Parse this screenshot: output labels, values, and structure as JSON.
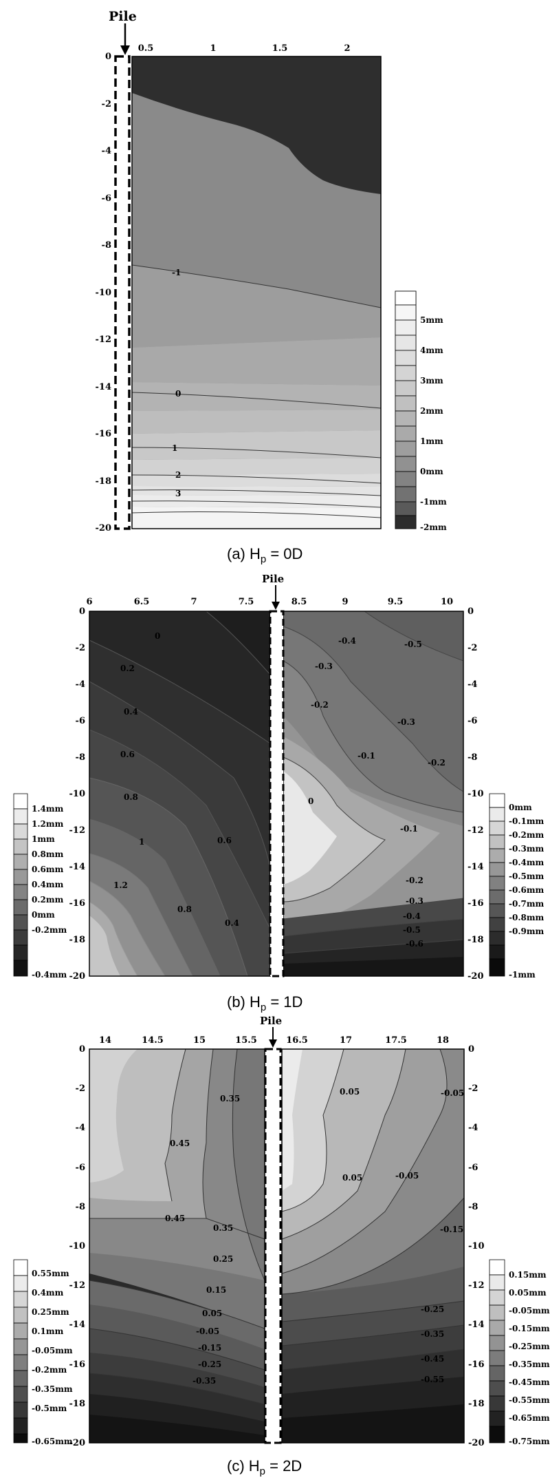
{
  "chart_data": [
    {
      "type": "heatmap",
      "caption": {
        "prefix": "(a)  H",
        "sub": "p",
        "suffix": " = 0D"
      },
      "pile_label": "Pile",
      "x_ticks": [
        "0.5",
        "1",
        "1.5",
        "2"
      ],
      "y_ticks": [
        "0",
        "-2",
        "-4",
        "-6",
        "-8",
        "-10",
        "-12",
        "-14",
        "-16",
        "-18",
        "-20"
      ],
      "contour_labels": [
        "-1",
        "0",
        "1",
        "2",
        "3"
      ],
      "legend": [
        "5mm",
        "4mm",
        "3mm",
        "2mm",
        "1mm",
        "0mm",
        "-1mm",
        "-2mm"
      ]
    },
    {
      "type": "heatmap",
      "caption": {
        "prefix": "(b)  H",
        "sub": "p",
        "suffix": " = 1D"
      },
      "pile_label": "Pile",
      "x_ticks_left": [
        "6",
        "6.5",
        "7",
        "7.5"
      ],
      "x_ticks_right": [
        "8.5",
        "9",
        "9.5",
        "10"
      ],
      "y_ticks": [
        "0",
        "-2",
        "-4",
        "-6",
        "-8",
        "-10",
        "-12",
        "-14",
        "-16",
        "-18",
        "-20"
      ],
      "contour_labels_left": [
        "0",
        "0.2",
        "0.4",
        "0.6",
        "0.8",
        "1",
        "1.2",
        "0.8",
        "0.6",
        "0.4"
      ],
      "contour_labels_right": [
        "-0.4",
        "-0.5",
        "-0.3",
        "-0.2",
        "-0.3",
        "-0.1",
        "-0.2",
        "0",
        "-0.1",
        "-0.2",
        "-0.3",
        "-0.4",
        "-0.5",
        "-0.6"
      ],
      "legend_left": [
        "1.4mm",
        "1.2mm",
        "1mm",
        "0.8mm",
        "0.6mm",
        "0.4mm",
        "0.2mm",
        "0mm",
        "-0.2mm",
        "-0.4mm"
      ],
      "legend_right": [
        "0mm",
        "-0.1mm",
        "-0.2mm",
        "-0.3mm",
        "-0.4mm",
        "-0.5mm",
        "-0.6mm",
        "-0.7mm",
        "-0.8mm",
        "-0.9mm",
        "-1mm"
      ]
    },
    {
      "type": "heatmap",
      "caption": {
        "prefix": "(c)  H",
        "sub": "p",
        "suffix": " = 2D"
      },
      "pile_label": "Pile",
      "x_ticks_left": [
        "14",
        "14.5",
        "15",
        "15.5"
      ],
      "x_ticks_right": [
        "16.5",
        "17",
        "17.5",
        "18"
      ],
      "y_ticks": [
        "0",
        "-2",
        "-4",
        "-6",
        "-8",
        "-10",
        "-12",
        "-14",
        "-16",
        "-18",
        "-20"
      ],
      "contour_labels_left": [
        "0.35",
        "0.45",
        "0.45",
        "0.35",
        "0.25",
        "0.15",
        "0.05",
        "-0.05",
        "-0.15",
        "-0.25",
        "-0.35"
      ],
      "contour_labels_right": [
        "0.05",
        "-0.05",
        "0.05",
        "-0.05",
        "-0.15",
        "-0.25",
        "-0.35",
        "-0.45",
        "-0.55"
      ],
      "legend_left": [
        "0.55mm",
        "0.4mm",
        "0.25mm",
        "0.1mm",
        "-0.05mm",
        "-0.2mm",
        "-0.35mm",
        "-0.5mm",
        "-0.65mm"
      ],
      "legend_right": [
        "0.15mm",
        "0.05mm",
        "-0.05mm",
        "-0.15mm",
        "-0.25mm",
        "-0.35mm",
        "-0.45mm",
        "-0.55mm",
        "-0.65mm",
        "-0.75mm"
      ]
    }
  ]
}
